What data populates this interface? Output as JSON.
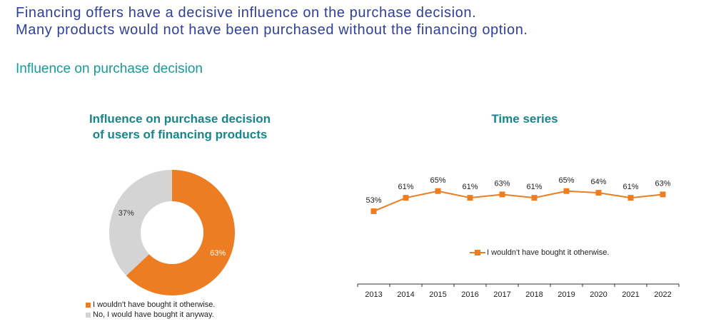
{
  "headline": {
    "line1": "Financing offers have a decisive influence on the purchase decision.",
    "line2": "Many products would not have been purchased without the financing option."
  },
  "subtitle": "Influence on purchase decision",
  "chart_data": [
    {
      "type": "pie",
      "title": "Influence on purchase decision of users of financing products",
      "title_lines": [
        "Influence on purchase decision",
        "of users of financing products"
      ],
      "slices": [
        {
          "label": "I wouldn't have bought it otherwise.",
          "value": 63,
          "value_label": "63%",
          "color": "#ed7d22"
        },
        {
          "label": "No, I would have bought it anyway.",
          "value": 37,
          "value_label": "37%",
          "color": "#d4d4d4"
        }
      ],
      "legend_position": "bottom-left"
    },
    {
      "type": "line",
      "title": "Time series",
      "x": [
        "2013",
        "2014",
        "2015",
        "2016",
        "2017",
        "2018",
        "2019",
        "2020",
        "2021",
        "2022"
      ],
      "series": [
        {
          "name": "I wouldn't have bought it otherwise.",
          "values": [
            53,
            61,
            65,
            61,
            63,
            61,
            65,
            64,
            61,
            63
          ],
          "labels": [
            "53%",
            "61%",
            "65%",
            "61%",
            "63%",
            "61%",
            "65%",
            "64%",
            "61%",
            "63%"
          ],
          "color": "#ed7d22"
        }
      ],
      "ylim": [
        0,
        100
      ],
      "grid": false,
      "legend_position": "center"
    }
  ]
}
